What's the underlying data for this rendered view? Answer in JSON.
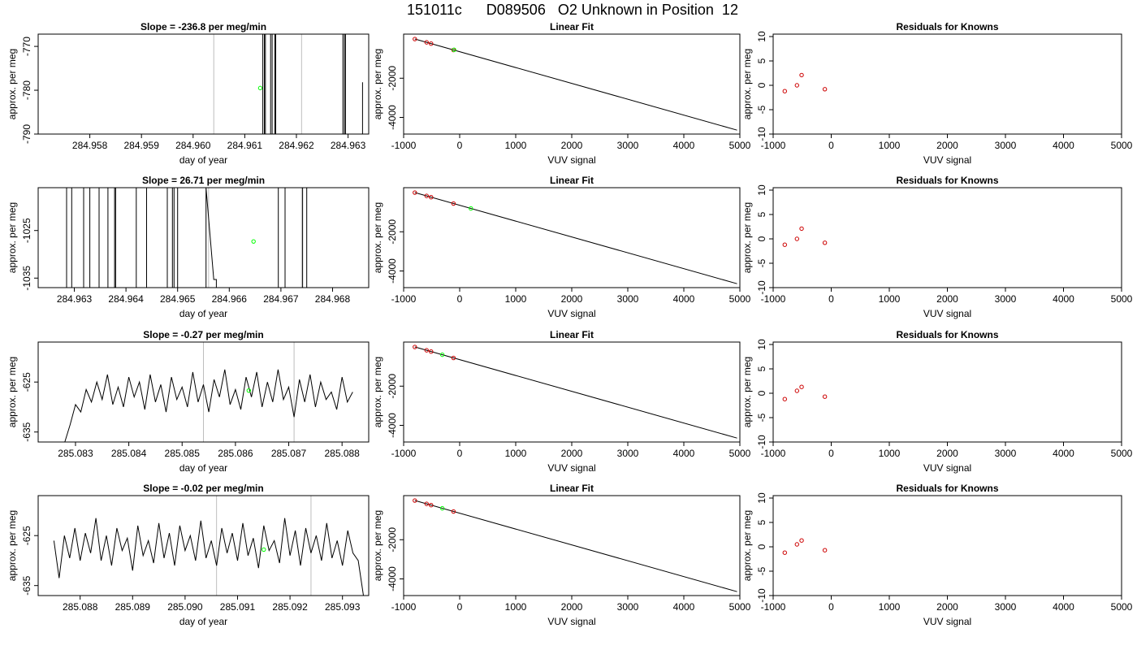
{
  "title": "151011c      D089506   O2 Unknown in Position  12",
  "colors": {
    "line": "#000000",
    "grid_vline": "#bebebe",
    "unknown": "#00ff00",
    "known": "#cd0000"
  },
  "chart_data": [
    {
      "type": "line",
      "panel": "time-series-1",
      "title": "Slope =  -236.8  per meg/min",
      "xlabel": "day of year",
      "ylabel": "approx. per meg",
      "xlim": [
        284.957,
        284.9634
      ],
      "ylim": [
        -790,
        -767.2
      ],
      "xticks": [
        284.958,
        284.959,
        284.96,
        284.961,
        284.962,
        284.963
      ],
      "xtick_labels": [
        "284.958",
        "284.959",
        "284.960",
        "284.961",
        "284.962",
        "284.963"
      ],
      "yticks": [
        -790,
        -780,
        -770
      ],
      "ytick_labels": [
        "-790",
        "-780",
        "-770"
      ],
      "vlines": [
        284.9604,
        284.9621
      ],
      "x": [
        284.96135,
        284.96135,
        284.96138,
        284.96138,
        284.9614,
        284.9614,
        284.9615,
        284.9615,
        284.96153,
        284.96153,
        284.96158,
        284.96158,
        284.9616,
        284.9616,
        284.9629,
        284.9629,
        284.96293,
        284.96293,
        284.96295,
        284.96295,
        284.96328,
        284.96328
      ],
      "y": [
        -790,
        -767.2,
        -767.2,
        -790,
        -790,
        -767.2,
        -767.2,
        -790,
        -790,
        -767.2,
        -767.2,
        -790,
        -790,
        -767.2,
        -767.2,
        -790,
        -790,
        -767.2,
        -767.2,
        -790,
        -790,
        -778.2
      ],
      "unknown_point": {
        "x": 284.9613,
        "y": -779.5
      }
    },
    {
      "type": "line",
      "panel": "time-series-2",
      "title": "Slope =  26.71  per meg/min",
      "xlabel": "day of year",
      "ylabel": "approx. per meg",
      "xlim": [
        284.9623,
        284.9687
      ],
      "ylim": [
        -1037,
        -1016
      ],
      "xticks": [
        284.963,
        284.964,
        284.965,
        284.966,
        284.967,
        284.968
      ],
      "xtick_labels": [
        "284.963",
        "284.964",
        "284.965",
        "284.966",
        "284.967",
        "284.968"
      ],
      "yticks": [
        -1035,
        -1025
      ],
      "ytick_labels": [
        "-1035",
        "-1025"
      ],
      "vlines": [
        284.9656,
        284.9674
      ],
      "x": [
        284.96285,
        284.96285,
        284.96295,
        284.96295,
        284.96318,
        284.96318,
        284.9633,
        284.9633,
        284.96348,
        284.96348,
        284.96365,
        284.96365,
        284.96378,
        284.96378,
        284.9638,
        284.9638,
        284.9642,
        284.9642,
        284.9644,
        284.9644,
        284.9648,
        284.9648,
        284.9649,
        284.9649,
        284.96493,
        284.96493,
        284.965,
        284.965,
        284.96555,
        284.96555,
        284.9657,
        284.96575,
        284.96575,
        284.96695,
        284.96695,
        284.96708,
        284.96708,
        284.96742,
        284.96742,
        284.9675,
        284.9675
      ],
      "y": [
        -1037,
        -1016,
        -1016,
        -1037,
        -1037,
        -1016,
        -1016,
        -1037,
        -1037,
        -1016,
        -1016,
        -1037,
        -1037,
        -1016,
        -1016,
        -1037,
        -1037,
        -1016,
        -1016,
        -1037,
        -1037,
        -1016,
        -1016,
        -1037,
        -1037,
        -1016,
        -1016,
        -1037,
        -1037,
        -1016,
        -1035.3,
        -1035.3,
        -1037,
        -1037,
        -1016,
        -1016,
        -1037,
        -1037,
        -1016,
        -1016,
        -1037
      ],
      "unknown_point": {
        "x": 284.96647,
        "y": -1027.3
      }
    },
    {
      "type": "line",
      "panel": "time-series-3",
      "title": "Slope =  -0.27  per meg/min",
      "xlabel": "day of year",
      "ylabel": "approx. per meg",
      "xlim": [
        285.0823,
        285.0885
      ],
      "ylim": [
        -637,
        -617
      ],
      "xticks": [
        285.083,
        285.084,
        285.085,
        285.086,
        285.087,
        285.088
      ],
      "xtick_labels": [
        "285.083",
        "285.084",
        "285.085",
        "285.086",
        "285.087",
        "285.088"
      ],
      "yticks": [
        -635,
        -625
      ],
      "ytick_labels": [
        "-635",
        "-625"
      ],
      "vlines": [
        285.0854,
        285.0871
      ],
      "x": [
        285.0828,
        285.0829,
        285.083,
        285.0831,
        285.0832,
        285.0833,
        285.0834,
        285.0835,
        285.0836,
        285.0837,
        285.0838,
        285.0839,
        285.084,
        285.0841,
        285.0842,
        285.0843,
        285.0844,
        285.0845,
        285.0846,
        285.0847,
        285.0848,
        285.0849,
        285.085,
        285.0851,
        285.0852,
        285.0853,
        285.0854,
        285.0855,
        285.0856,
        285.0857,
        285.0858,
        285.0859,
        285.086,
        285.0861,
        285.0862,
        285.0863,
        285.0864,
        285.0865,
        285.0866,
        285.0867,
        285.0868,
        285.0869,
        285.087,
        285.0871,
        285.0872,
        285.0873,
        285.0874,
        285.0875,
        285.0876,
        285.0877,
        285.0878,
        285.0879,
        285.088,
        285.0881,
        285.0882
      ],
      "y": [
        -637,
        -633.5,
        -629.5,
        -631,
        -626.5,
        -629,
        -625,
        -628.5,
        -623.5,
        -629.5,
        -626,
        -630,
        -624,
        -628,
        -625,
        -630.5,
        -623.5,
        -629,
        -625.5,
        -631,
        -624,
        -628.5,
        -626,
        -630,
        -623,
        -629,
        -625.5,
        -631,
        -624.5,
        -628,
        -622.5,
        -629.5,
        -626.5,
        -630.5,
        -624,
        -628,
        -623,
        -630,
        -625,
        -629,
        -622.5,
        -628.5,
        -626,
        -632,
        -624.5,
        -629,
        -623.5,
        -630,
        -625,
        -628.5,
        -627,
        -630.5,
        -624,
        -629,
        -627
      ],
      "unknown_point": {
        "x": 285.08625,
        "y": -626.7
      }
    },
    {
      "type": "line",
      "panel": "time-series-4",
      "title": "Slope =  -0.02  per meg/min",
      "xlabel": "day of year",
      "ylabel": "approx. per meg",
      "xlim": [
        285.0872,
        285.0935
      ],
      "ylim": [
        -637,
        -617
      ],
      "xticks": [
        285.088,
        285.089,
        285.09,
        285.091,
        285.092,
        285.093
      ],
      "xtick_labels": [
        "285.088",
        "285.089",
        "285.090",
        "285.091",
        "285.092",
        "285.093"
      ],
      "yticks": [
        -635,
        -625
      ],
      "ytick_labels": [
        "-635",
        "-625"
      ],
      "vlines": [
        285.0906,
        285.0924
      ],
      "x": [
        285.0875,
        285.0876,
        285.0877,
        285.0878,
        285.0879,
        285.088,
        285.0881,
        285.0882,
        285.0883,
        285.0884,
        285.0885,
        285.0886,
        285.0887,
        285.0888,
        285.0889,
        285.089,
        285.0891,
        285.0892,
        285.0893,
        285.0894,
        285.0895,
        285.0896,
        285.0897,
        285.0898,
        285.0899,
        285.09,
        285.0901,
        285.0902,
        285.0903,
        285.0904,
        285.0905,
        285.0906,
        285.0907,
        285.0908,
        285.0909,
        285.091,
        285.0911,
        285.0912,
        285.0913,
        285.0914,
        285.0915,
        285.0916,
        285.0917,
        285.0918,
        285.0919,
        285.092,
        285.0921,
        285.0922,
        285.0923,
        285.0924,
        285.0925,
        285.0926,
        285.0927,
        285.0928,
        285.0929,
        285.093,
        285.0931,
        285.0932,
        285.0933,
        285.0934
      ],
      "y": [
        -626,
        -633.5,
        -625,
        -629.5,
        -623.5,
        -630,
        -624.5,
        -628.5,
        -621.5,
        -630,
        -625,
        -631,
        -623.5,
        -628,
        -625.5,
        -632,
        -623,
        -629,
        -626,
        -630.5,
        -622.5,
        -629.5,
        -624.5,
        -631,
        -623,
        -628,
        -625,
        -630,
        -622,
        -629.5,
        -626,
        -631,
        -623.5,
        -628.5,
        -624.5,
        -630,
        -622.5,
        -629,
        -625.5,
        -631.5,
        -623,
        -628,
        -626,
        -630.5,
        -621.5,
        -629,
        -624,
        -631,
        -623.5,
        -628.5,
        -625,
        -630,
        -622.5,
        -629.5,
        -626,
        -631,
        -624,
        -628.5,
        -630,
        -637
      ],
      "unknown_point": {
        "x": 285.0915,
        "y": -627.8
      }
    },
    {
      "type": "scatter",
      "panel": "linear-fit-1",
      "title": "Linear Fit",
      "xlabel": "VUV signal",
      "ylabel": "approx. per meg",
      "xlim": [
        -1000,
        5000
      ],
      "ylim": [
        -4850,
        250
      ],
      "xticks": [
        -1000,
        0,
        1000,
        2000,
        3000,
        4000,
        5000
      ],
      "xtick_labels": [
        "-1000",
        "0",
        "1000",
        "2000",
        "3000",
        "4000",
        "5000"
      ],
      "yticks": [
        -4000,
        -2000
      ],
      "ytick_labels": [
        "-4000",
        "-2000"
      ],
      "fit_line": {
        "x": [
          -800,
          4950
        ],
        "y": [
          0,
          -4650
        ]
      },
      "knowns": {
        "x": [
          -800,
          -590,
          -510,
          -110
        ],
        "y": [
          0,
          -170,
          -236,
          -560
        ]
      },
      "unknown": {
        "x": -100,
        "y": -550
      }
    },
    {
      "type": "scatter",
      "panel": "linear-fit-2",
      "title": "Linear Fit",
      "xlabel": "VUV signal",
      "ylabel": "approx. per meg",
      "xlim": [
        -1000,
        5000
      ],
      "ylim": [
        -4850,
        250
      ],
      "xticks": [
        -1000,
        0,
        1000,
        2000,
        3000,
        4000,
        5000
      ],
      "xtick_labels": [
        "-1000",
        "0",
        "1000",
        "2000",
        "3000",
        "4000",
        "5000"
      ],
      "yticks": [
        -4000,
        -2000
      ],
      "ytick_labels": [
        "-4000",
        "-2000"
      ],
      "fit_line": {
        "x": [
          -800,
          4950
        ],
        "y": [
          0,
          -4650
        ]
      },
      "knowns": {
        "x": [
          -800,
          -590,
          -510,
          -110
        ],
        "y": [
          0,
          -170,
          -236,
          -560
        ]
      },
      "unknown": {
        "x": 200,
        "y": -810
      }
    },
    {
      "type": "scatter",
      "panel": "linear-fit-3",
      "title": "Linear Fit",
      "xlabel": "VUV signal",
      "ylabel": "approx. per meg",
      "xlim": [
        -1000,
        5000
      ],
      "ylim": [
        -4850,
        250
      ],
      "xticks": [
        -1000,
        0,
        1000,
        2000,
        3000,
        4000,
        5000
      ],
      "xtick_labels": [
        "-1000",
        "0",
        "1000",
        "2000",
        "3000",
        "4000",
        "5000"
      ],
      "yticks": [
        -4000,
        -2000
      ],
      "ytick_labels": [
        "-4000",
        "-2000"
      ],
      "fit_line": {
        "x": [
          -800,
          4950
        ],
        "y": [
          0,
          -4650
        ]
      },
      "knowns": {
        "x": [
          -800,
          -590,
          -510,
          -110
        ],
        "y": [
          0,
          -170,
          -236,
          -560
        ]
      },
      "unknown": {
        "x": -310,
        "y": -398
      }
    },
    {
      "type": "scatter",
      "panel": "linear-fit-4",
      "title": "Linear Fit",
      "xlabel": "VUV signal",
      "ylabel": "approx. per meg",
      "xlim": [
        -1000,
        5000
      ],
      "ylim": [
        -4850,
        250
      ],
      "xticks": [
        -1000,
        0,
        1000,
        2000,
        3000,
        4000,
        5000
      ],
      "xtick_labels": [
        "-1000",
        "0",
        "1000",
        "2000",
        "3000",
        "4000",
        "5000"
      ],
      "yticks": [
        -4000,
        -2000
      ],
      "ytick_labels": [
        "-4000",
        "-2000"
      ],
      "fit_line": {
        "x": [
          -800,
          4950
        ],
        "y": [
          0,
          -4650
        ]
      },
      "knowns": {
        "x": [
          -800,
          -590,
          -510,
          -110
        ],
        "y": [
          0,
          -170,
          -236,
          -560
        ]
      },
      "unknown": {
        "x": -310,
        "y": -398
      }
    },
    {
      "type": "scatter",
      "panel": "residuals-1",
      "title": "Residuals for Knowns",
      "xlabel": "VUV signal",
      "ylabel": "approx. per meg",
      "xlim": [
        -1000,
        5000
      ],
      "ylim": [
        -10,
        10.5
      ],
      "xticks": [
        -1000,
        0,
        1000,
        2000,
        3000,
        4000,
        5000
      ],
      "xtick_labels": [
        "-1000",
        "0",
        "1000",
        "2000",
        "3000",
        "4000",
        "5000"
      ],
      "yticks": [
        -10,
        -5,
        0,
        5,
        10
      ],
      "ytick_labels": [
        "-10",
        "-5",
        "0",
        "5",
        "10"
      ],
      "knowns": {
        "x": [
          -800,
          -590,
          -510,
          -110
        ],
        "y": [
          -1.2,
          0,
          2.1,
          -0.8
        ]
      }
    },
    {
      "type": "scatter",
      "panel": "residuals-2",
      "title": "Residuals for Knowns",
      "xlabel": "VUV signal",
      "ylabel": "approx. per meg",
      "xlim": [
        -1000,
        5000
      ],
      "ylim": [
        -10,
        10.5
      ],
      "xticks": [
        -1000,
        0,
        1000,
        2000,
        3000,
        4000,
        5000
      ],
      "xtick_labels": [
        "-1000",
        "0",
        "1000",
        "2000",
        "3000",
        "4000",
        "5000"
      ],
      "yticks": [
        -10,
        -5,
        0,
        5,
        10
      ],
      "ytick_labels": [
        "-10",
        "-5",
        "0",
        "5",
        "10"
      ],
      "knowns": {
        "x": [
          -800,
          -590,
          -510,
          -110
        ],
        "y": [
          -1.2,
          0,
          2.1,
          -0.8
        ]
      }
    },
    {
      "type": "scatter",
      "panel": "residuals-3",
      "title": "Residuals for Knowns",
      "xlabel": "VUV signal",
      "ylabel": "approx. per meg",
      "xlim": [
        -1000,
        5000
      ],
      "ylim": [
        -10,
        10.5
      ],
      "xticks": [
        -1000,
        0,
        1000,
        2000,
        3000,
        4000,
        5000
      ],
      "xtick_labels": [
        "-1000",
        "0",
        "1000",
        "2000",
        "3000",
        "4000",
        "5000"
      ],
      "yticks": [
        -10,
        -5,
        0,
        5,
        10
      ],
      "ytick_labels": [
        "-10",
        "-5",
        "0",
        "5",
        "10"
      ],
      "knowns": {
        "x": [
          -800,
          -590,
          -510,
          -110
        ],
        "y": [
          -1.2,
          0.5,
          1.3,
          -0.7
        ]
      }
    },
    {
      "type": "scatter",
      "panel": "residuals-4",
      "title": "Residuals for Knowns",
      "xlabel": "VUV signal",
      "ylabel": "approx. per meg",
      "xlim": [
        -1000,
        5000
      ],
      "ylim": [
        -10,
        10.5
      ],
      "xticks": [
        -1000,
        0,
        1000,
        2000,
        3000,
        4000,
        5000
      ],
      "xtick_labels": [
        "-1000",
        "0",
        "1000",
        "2000",
        "3000",
        "4000",
        "5000"
      ],
      "yticks": [
        -10,
        -5,
        0,
        5,
        10
      ],
      "ytick_labels": [
        "-10",
        "-5",
        "0",
        "5",
        "10"
      ],
      "knowns": {
        "x": [
          -800,
          -590,
          -510,
          -110
        ],
        "y": [
          -1.2,
          0.5,
          1.3,
          -0.7
        ]
      }
    }
  ]
}
